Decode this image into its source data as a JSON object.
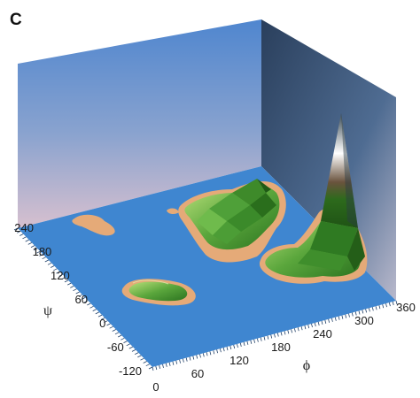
{
  "panel_label": "C",
  "chart_data": {
    "type": "surface-3d",
    "x_axis": {
      "label": "ϕ",
      "ticks": [
        0,
        60,
        120,
        180,
        240,
        300,
        360
      ],
      "range": [
        0,
        360
      ]
    },
    "y_axis": {
      "label": "ψ",
      "ticks": [
        240,
        180,
        120,
        60,
        0,
        -60,
        -120
      ],
      "range": [
        -120,
        240
      ]
    },
    "grid": false,
    "colors": {
      "floor": "#3f86d0",
      "back_wall": "#5f8fcc",
      "side_wall": "#3d5677",
      "sand": "#e5aa78",
      "low": "#6cb84a",
      "mid": "#2f7c22",
      "peak": "#ffffff"
    },
    "regions": [
      {
        "phi_center": 195,
        "psi_center": 190,
        "relative_height": 0.33
      },
      {
        "phi_center": 320,
        "psi_center": 100,
        "relative_height": 1.0
      },
      {
        "phi_center": 45,
        "psi_center": 225,
        "relative_height": 0.02
      },
      {
        "phi_center": 40,
        "psi_center": 40,
        "relative_height": 0.12
      }
    ]
  }
}
